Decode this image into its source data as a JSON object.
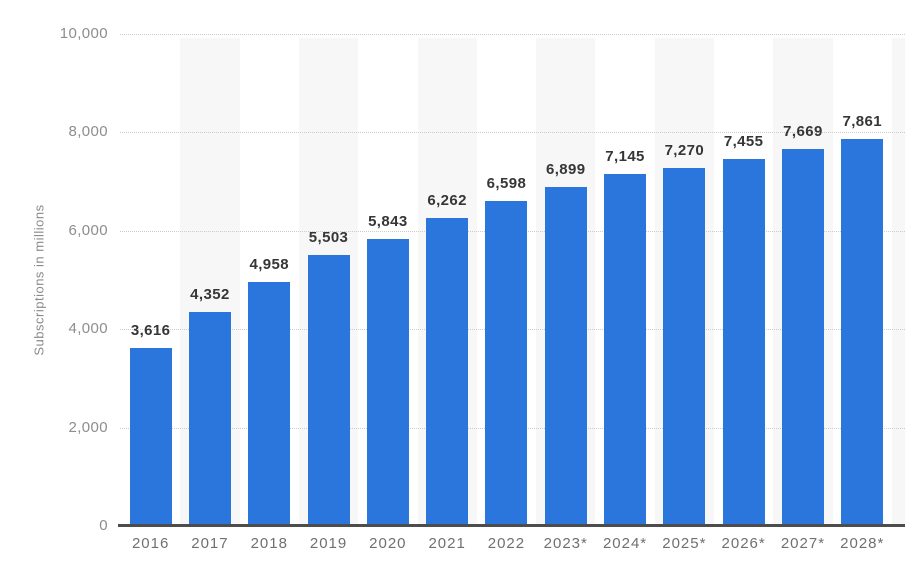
{
  "chart_data": {
    "type": "bar",
    "categories": [
      "2016",
      "2017",
      "2018",
      "2019",
      "2020",
      "2021",
      "2022",
      "2023*",
      "2024*",
      "2025*",
      "2026*",
      "2027*",
      "2028*"
    ],
    "values": [
      3616,
      4352,
      4958,
      5503,
      5843,
      6262,
      6598,
      6899,
      7145,
      7270,
      7455,
      7669,
      7861
    ],
    "value_labels": [
      "3,616",
      "4,352",
      "4,958",
      "5,503",
      "5,843",
      "6,262",
      "6,598",
      "6,899",
      "7,145",
      "7,270",
      "7,455",
      "7,669",
      "7,861"
    ],
    "ylabel": "Subscriptions in millions",
    "xlabel": "",
    "ylim": [
      0,
      10000
    ],
    "yticks": [
      0,
      2000,
      4000,
      6000,
      8000,
      10000
    ],
    "ytick_labels": [
      "0",
      "2,000",
      "4,000",
      "6,000",
      "8,000",
      "10,000"
    ],
    "grid": "horizontal-dotted",
    "legend": "none",
    "column_bands": "alternating, starting with second column, partial band at right edge",
    "colors": {
      "bar": "#2a76dd",
      "band": "#f7f7f7",
      "gridline": "#cccccc",
      "axis_line": "#4d4d4d",
      "tick_text": "#8d8d8d",
      "category_text": "#6d7074",
      "value_text": "#363636",
      "ylabel_text": "#8a8a8a",
      "background": "#ffffff"
    }
  }
}
